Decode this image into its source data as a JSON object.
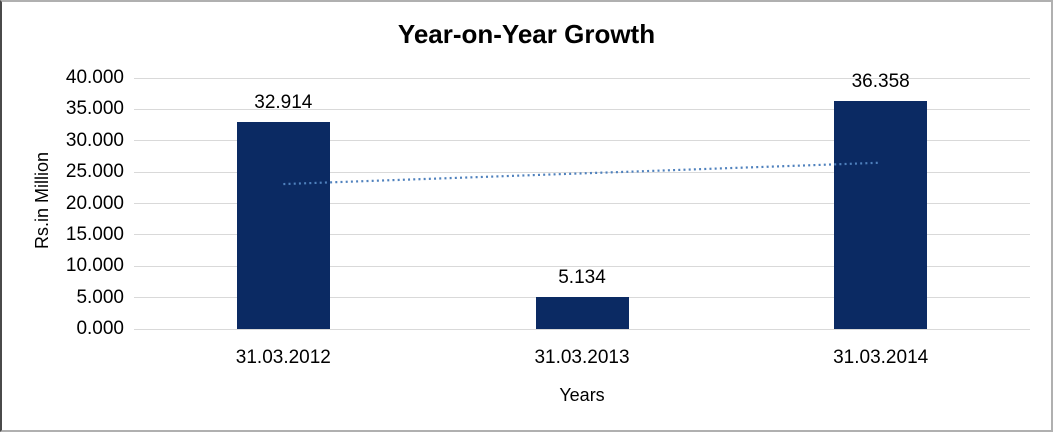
{
  "chart_data": {
    "type": "bar",
    "title": "Year-on-Year Growth",
    "xlabel": "Years",
    "ylabel": "Rs.in Million",
    "categories": [
      "31.03.2012",
      "31.03.2013",
      "31.03.2014"
    ],
    "values": [
      32.914,
      5.134,
      36.358
    ],
    "data_labels": [
      "32.914",
      "5.134",
      "36.358"
    ],
    "ylim": [
      0,
      40
    ],
    "yticks": [
      {
        "value": 0,
        "label": "0.000"
      },
      {
        "value": 5,
        "label": "5.000"
      },
      {
        "value": 10,
        "label": "10.000"
      },
      {
        "value": 15,
        "label": "15.000"
      },
      {
        "value": 20,
        "label": "20.000"
      },
      {
        "value": 25,
        "label": "25.000"
      },
      {
        "value": 30,
        "label": "30.000"
      },
      {
        "value": 35,
        "label": "35.000"
      },
      {
        "value": 40,
        "label": "40.000"
      }
    ],
    "grid": true,
    "legend_position": "none",
    "bar_color": "#0b2a63",
    "gridline_color": "#d9d9d9",
    "trendline": {
      "type": "linear",
      "style": "dotted",
      "color": "#4f81bd",
      "start_value": 23.1,
      "end_value": 26.5
    }
  }
}
